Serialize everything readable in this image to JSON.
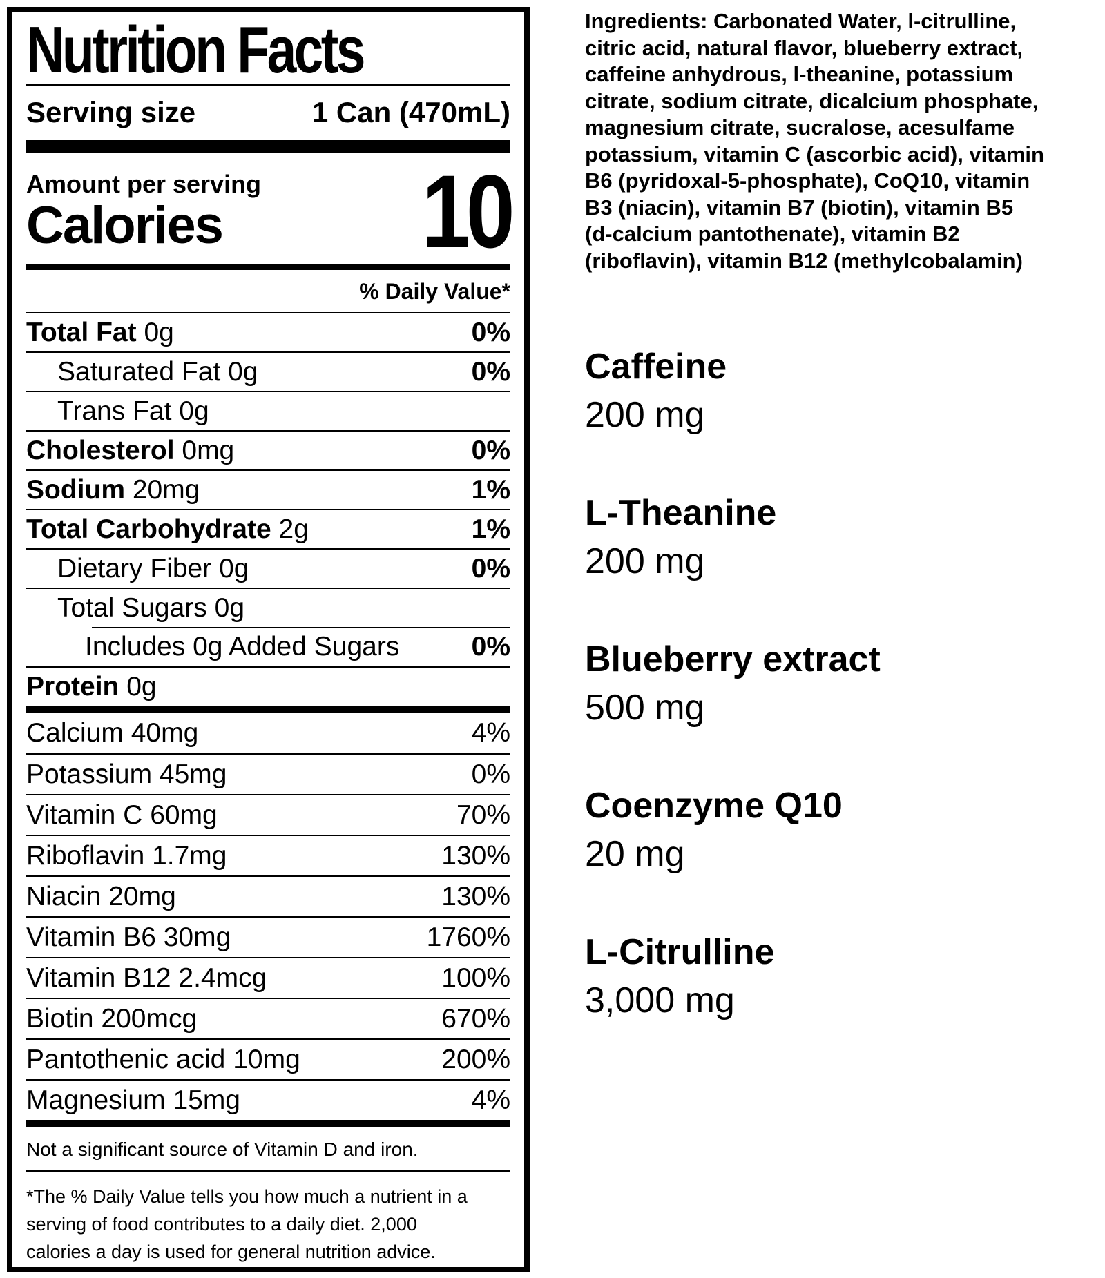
{
  "label": {
    "title": "Nutrition Facts",
    "serving_size_label": "Serving size",
    "serving_size_value": "1 Can (470mL)",
    "amount_per_serving": "Amount per serving",
    "calories_label": "Calories",
    "calories_value": "10",
    "daily_value_header": "% Daily Value*",
    "nutrients": [
      {
        "name": "Total Fat",
        "amount": "0g",
        "dv": "0%",
        "bold": true,
        "indent": 0
      },
      {
        "name": "Saturated Fat",
        "amount": "0g",
        "dv": "0%",
        "bold": false,
        "indent": 1
      },
      {
        "name": "Trans Fat",
        "amount": "0g",
        "dv": "",
        "bold": false,
        "indent": 1
      },
      {
        "name": "Cholesterol",
        "amount": "0mg",
        "dv": "0%",
        "bold": true,
        "indent": 0
      },
      {
        "name": "Sodium",
        "amount": "20mg",
        "dv": "1%",
        "bold": true,
        "indent": 0
      },
      {
        "name": "Total Carbohydrate",
        "amount": "2g",
        "dv": "1%",
        "bold": true,
        "indent": 0
      },
      {
        "name": "Dietary Fiber",
        "amount": "0g",
        "dv": "0%",
        "bold": false,
        "indent": 1
      },
      {
        "name": "Total Sugars",
        "amount": "0g",
        "dv": "",
        "bold": false,
        "indent": 1
      },
      {
        "name": "Includes 0g Added Sugars",
        "amount": "",
        "dv": "0%",
        "bold": false,
        "indent": 2,
        "sep_indent": true
      },
      {
        "name": "Protein",
        "amount": "0g",
        "dv": "",
        "bold": true,
        "indent": 0
      }
    ],
    "micronutrients": [
      {
        "name": "Calcium",
        "amount": "40mg",
        "dv": "4%"
      },
      {
        "name": "Potassium",
        "amount": "45mg",
        "dv": "0%"
      },
      {
        "name": "Vitamin C",
        "amount": "60mg",
        "dv": "70%"
      },
      {
        "name": "Riboflavin",
        "amount": "1.7mg",
        "dv": "130%"
      },
      {
        "name": "Niacin",
        "amount": "20mg",
        "dv": "130%"
      },
      {
        "name": "Vitamin B6",
        "amount": "30mg",
        "dv": "1760%"
      },
      {
        "name": "Vitamin B12",
        "amount": "2.4mcg",
        "dv": "100%"
      },
      {
        "name": "Biotin",
        "amount": "200mcg",
        "dv": "670%"
      },
      {
        "name": "Pantothenic acid",
        "amount": "10mg",
        "dv": "200%"
      },
      {
        "name": "Magnesium",
        "amount": "15mg",
        "dv": "4%"
      }
    ],
    "not_significant": "Not a significant source of Vitamin D and iron.",
    "footnote_lines": [
      "*The % Daily Value tells you how much a nutrient in a",
      "serving of food contributes to a daily diet. 2,000",
      "calories a day is used for general nutrition advice."
    ]
  },
  "ingredients": {
    "lines": [
      "Ingredients: Carbonated Water, l-citrulline,",
      "citric acid, natural flavor, blueberry extract,",
      "caffeine anhydrous, l-theanine, potassium",
      "citrate, sodium citrate, dicalcium phosphate,",
      "magnesium citrate, sucralose, acesulfame",
      "potassium, vitamin C (ascorbic acid), vitamin",
      "B6 (pyridoxal-5-phosphate), CoQ10, vitamin",
      "B3 (niacin), vitamin B7 (biotin), vitamin B5",
      "(d-calcium pantothenate), vitamin B2",
      "(riboflavin), vitamin B12 (methylcobalamin)"
    ]
  },
  "supplements": [
    {
      "name": "Caffeine",
      "amount": "200 mg"
    },
    {
      "name": "L-Theanine",
      "amount": "200 mg"
    },
    {
      "name": "Blueberry extract",
      "amount": "500 mg"
    },
    {
      "name": "Coenzyme Q10",
      "amount": "20 mg"
    },
    {
      "name": "L-Citrulline",
      "amount": "3,000 mg"
    }
  ],
  "colors": {
    "ink": "#000000",
    "background": "#ffffff"
  }
}
